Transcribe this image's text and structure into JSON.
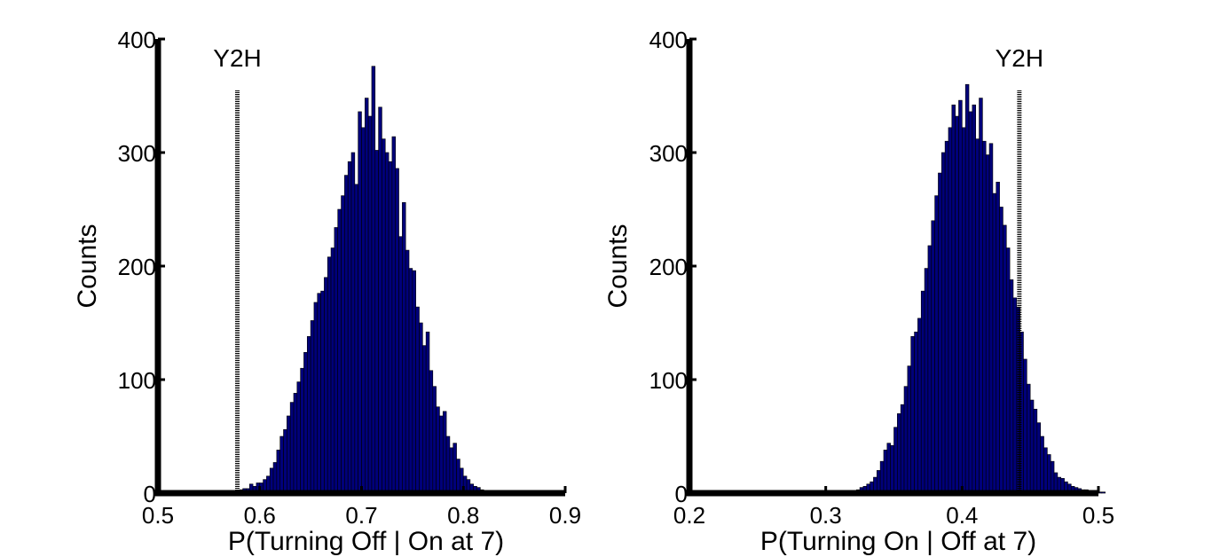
{
  "chart_data": [
    {
      "type": "bar",
      "xlabel": "P(Turning Off | On at 7)",
      "ylabel": "Counts",
      "xlim": [
        0.5,
        0.9
      ],
      "ylim": [
        0,
        400
      ],
      "xticks": [
        "0.5",
        "0.6",
        "0.7",
        "0.8",
        "0.9"
      ],
      "yticks": [
        "0",
        "100",
        "200",
        "300",
        "400"
      ],
      "bin_start": 0.5,
      "bin_width": 0.003333,
      "values": [
        0,
        0,
        0,
        0,
        0,
        0,
        0,
        0,
        0,
        0,
        0,
        0,
        0,
        0,
        0,
        0,
        0,
        0,
        0,
        0,
        0,
        1,
        2,
        2,
        3,
        4,
        4,
        8,
        6,
        9,
        9,
        12,
        15,
        22,
        27,
        38,
        50,
        56,
        68,
        80,
        88,
        98,
        110,
        124,
        138,
        152,
        168,
        176,
        178,
        190,
        208,
        216,
        234,
        250,
        262,
        280,
        292,
        300,
        272,
        336,
        322,
        348,
        332,
        376,
        302,
        340,
        312,
        300,
        292,
        314,
        286,
        226,
        256,
        214,
        198,
        196,
        164,
        150,
        130,
        142,
        108,
        94,
        76,
        68,
        72,
        50,
        40,
        44,
        30,
        22,
        15,
        12,
        8,
        6,
        5,
        3,
        2,
        1,
        1,
        0,
        0,
        1,
        0,
        0,
        0,
        1,
        0,
        0,
        0,
        0,
        0,
        0,
        0,
        0,
        0,
        0,
        0,
        0,
        0,
        0,
        0
      ],
      "series": [
        {
          "values_ref": "values",
          "color": "#00007a"
        }
      ],
      "annotations": [
        {
          "text": "Y2H",
          "x": 0.578
        }
      ],
      "grid": false
    },
    {
      "type": "bar",
      "xlabel": "P(Turning On | Off at 7)",
      "ylabel": "Counts",
      "xlim": [
        0.2,
        0.5
      ],
      "ylim": [
        0,
        400
      ],
      "xticks": [
        "0.2",
        "0.3",
        "0.4",
        "0.5"
      ],
      "yticks": [
        "0",
        "100",
        "200",
        "300",
        "400"
      ],
      "bin_start": 0.2,
      "bin_width": 0.0025,
      "values": [
        0,
        0,
        0,
        0,
        0,
        0,
        0,
        0,
        0,
        0,
        0,
        0,
        0,
        0,
        0,
        0,
        0,
        0,
        0,
        0,
        0,
        0,
        0,
        0,
        0,
        0,
        0,
        0,
        0,
        0,
        0,
        0,
        0,
        0,
        0,
        0,
        0,
        0,
        0,
        0,
        0,
        0,
        0,
        0,
        0,
        0,
        0,
        1,
        2,
        3,
        5,
        6,
        8,
        10,
        14,
        20,
        28,
        38,
        44,
        42,
        58,
        70,
        78,
        94,
        112,
        138,
        142,
        154,
        178,
        198,
        218,
        240,
        262,
        282,
        300,
        310,
        322,
        342,
        332,
        346,
        322,
        360,
        336,
        342,
        312,
        348,
        310,
        298,
        308,
        264,
        274,
        252,
        236,
        216,
        188,
        172,
        164,
        142,
        118,
        96,
        82,
        74,
        62,
        50,
        40,
        34,
        28,
        18,
        14,
        13,
        10,
        8,
        6,
        5,
        4,
        3,
        3,
        2,
        2,
        1,
        1,
        1,
        0,
        0,
        0
      ],
      "series": [
        {
          "values_ref": "values",
          "color": "#00007a"
        }
      ],
      "annotations": [
        {
          "text": "Y2H",
          "x": 0.442
        }
      ],
      "grid": false
    }
  ]
}
